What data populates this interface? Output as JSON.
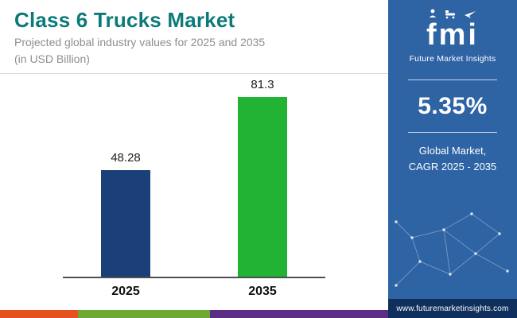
{
  "header": {
    "title": "Class 6 Trucks Market",
    "subtitle_line1": "Projected global industry values for 2025 and 2035",
    "subtitle_line2": "(in USD Billion)"
  },
  "chart_data": {
    "type": "bar",
    "categories": [
      "2025",
      "2035"
    ],
    "values": [
      48.28,
      81.3
    ],
    "value_labels": [
      "48.28",
      "81.3"
    ],
    "bar_colors": [
      "#1b3f78",
      "#22b234"
    ],
    "title": "Class 6 Trucks Market",
    "xlabel": "",
    "ylabel": "USD Billion",
    "ylim": [
      0,
      90
    ],
    "grid": false,
    "legend": false
  },
  "sidebar": {
    "brand": {
      "logo_text": "fmi",
      "name": "Future Market Insights"
    },
    "cagr": {
      "value": "5.35%",
      "label_line1": "Global Market,",
      "label_line2": "CAGR 2025 - 2035"
    },
    "website": "www.futuremarketinsights.com"
  },
  "colors": {
    "title_teal": "#0c7a7a",
    "panel_blue": "#2e63a4",
    "panel_footer_blue": "#0f2f5d"
  },
  "footer_stripe_colors": [
    "#e4521d",
    "#6fa932",
    "#5b2d84"
  ]
}
